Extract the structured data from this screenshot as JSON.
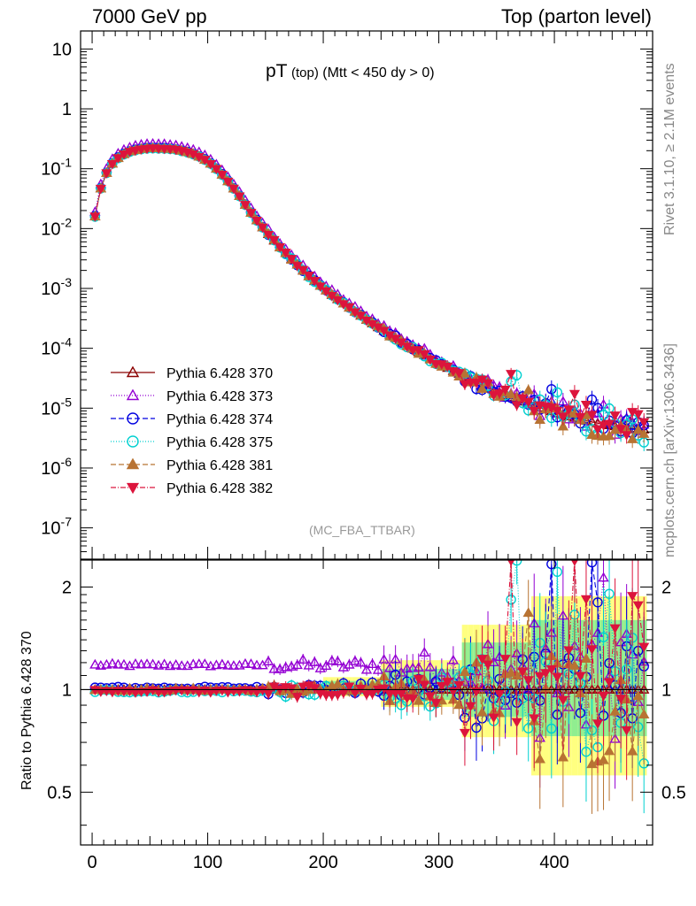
{
  "header": {
    "left": "7000 GeV pp",
    "right": "Top (parton level)"
  },
  "side_text": {
    "rivet": "Rivet 3.1.10, ≥ 2.1M events",
    "mcplots": "mcplots.cern.ch [arXiv:1306.3436]"
  },
  "plot_title": {
    "main": "pT",
    "sub": "(top)",
    "cut": "(Mtt < 450 dy > 0)"
  },
  "analysis_label": "(MC_FBA_TTBAR)",
  "ratio_ylabel": "Ratio to Pythia 6.428 370",
  "main_ticks": [
    "10",
    "1",
    "10-1",
    "10-2",
    "10-3",
    "10-4",
    "10-5",
    "10-6",
    "10-7"
  ],
  "ratio_ticks": [
    "2",
    "1",
    "0.5"
  ],
  "x_ticks": [
    "0",
    "100",
    "200",
    "300",
    "400"
  ],
  "chart_data": {
    "type": "line",
    "x": [
      2.5,
      7.5,
      12.5,
      17.5,
      22.5,
      27.5,
      32.5,
      37.5,
      42.5,
      47.5,
      52.5,
      57.5,
      62.5,
      67.5,
      72.5,
      77.5,
      82.5,
      87.5,
      92.5,
      97.5,
      102.5,
      107.5,
      112.5,
      117.5,
      122.5,
      127.5,
      132.5,
      137.5,
      142.5,
      147.5,
      152.5,
      157.5,
      162.5,
      167.5,
      172.5,
      177.5,
      182.5,
      187.5,
      192.5,
      197.5,
      202.5,
      207.5,
      212.5,
      217.5,
      222.5,
      227.5,
      232.5,
      237.5,
      242.5,
      247.5,
      252.5,
      257.5,
      262.5,
      267.5,
      272.5,
      277.5,
      282.5,
      287.5,
      292.5,
      297.5,
      302.5,
      307.5,
      312.5,
      317.5,
      322.5,
      327.5,
      332.5,
      337.5,
      342.5,
      347.5,
      352.5,
      357.5,
      362.5,
      367.5,
      372.5,
      377.5,
      382.5,
      387.5,
      392.5,
      397.5,
      402.5,
      407.5,
      412.5,
      417.5,
      422.5,
      427.5,
      432.5,
      437.5,
      442.5,
      447.5,
      452.5,
      457.5,
      462.5,
      467.5,
      472.5,
      477.5
    ],
    "reference_values": [
      0.016,
      0.047,
      0.085,
      0.122,
      0.152,
      0.176,
      0.194,
      0.206,
      0.214,
      0.219,
      0.221,
      0.221,
      0.219,
      0.215,
      0.209,
      0.2,
      0.19,
      0.176,
      0.16,
      0.142,
      0.122,
      0.1,
      0.08,
      0.062,
      0.047,
      0.035,
      0.025,
      0.0185,
      0.0138,
      0.0105,
      0.0081,
      0.0063,
      0.0049,
      0.0039,
      0.0031,
      0.0025,
      0.002,
      0.0016,
      0.00133,
      0.00111,
      0.00093,
      0.00078,
      0.00066,
      0.00056,
      0.00048,
      0.00041,
      0.00035,
      0.0003,
      0.00026,
      0.000225,
      0.000195,
      0.00017,
      0.000148,
      0.000129,
      0.000113,
      9.9e-05,
      8.7e-05,
      7.7e-05,
      6.8e-05,
      6e-05,
      5.3e-05,
      4.7e-05,
      4.2e-05,
      3.75e-05,
      3.35e-05,
      3e-05,
      2.7e-05,
      2.45e-05,
      2.2e-05,
      2e-05,
      1.82e-05,
      1.66e-05,
      1.52e-05,
      1.4e-05,
      1.29e-05,
      1.19e-05,
      1.1e-05,
      1.02e-05,
      9.5e-06,
      8.9e-06,
      8.3e-06,
      7.8e-06,
      7.3e-06,
      6.9e-06,
      6.5e-06,
      6.2e-06,
      5.9e-06,
      5.6e-06,
      5.4e-06,
      5.2e-06,
      5e-06,
      4.8e-06,
      4.7e-06,
      4.6e-06,
      4.5e-06,
      4.4e-06
    ],
    "series": [
      {
        "name": "Pythia 6.428 370",
        "color": "#8b0000",
        "dash": "",
        "marker": "triangle-open",
        "ratio_level": 1.0
      },
      {
        "name": "Pythia 6.428 373",
        "color": "#9400d3",
        "dash": "1,2",
        "marker": "triangle-open",
        "ratio_level": 1.18
      },
      {
        "name": "Pythia 6.428 374",
        "color": "#0000e0",
        "dash": "6,3",
        "marker": "circle-open",
        "ratio_level": 1.01
      },
      {
        "name": "Pythia 6.428 375",
        "color": "#00d0d0",
        "dash": "1,2",
        "marker": "circle-open",
        "ratio_level": 0.99
      },
      {
        "name": "Pythia 6.428 381",
        "color": "#b87333",
        "dash": "6,3",
        "marker": "triangle-filled",
        "ratio_level": 1.0
      },
      {
        "name": "Pythia 6.428 382",
        "color": "#dc143c",
        "dash": "6,2,1,2",
        "marker": "triangle-down-filled",
        "ratio_level": 0.99
      }
    ],
    "xlim": [
      -10,
      485
    ],
    "ylim_main": [
      3e-08,
      20
    ],
    "ylim_ratio": [
      0.35,
      2.4
    ],
    "yscale_main": "log",
    "yscale_ratio": "log",
    "legend_placement": "lower-left"
  }
}
